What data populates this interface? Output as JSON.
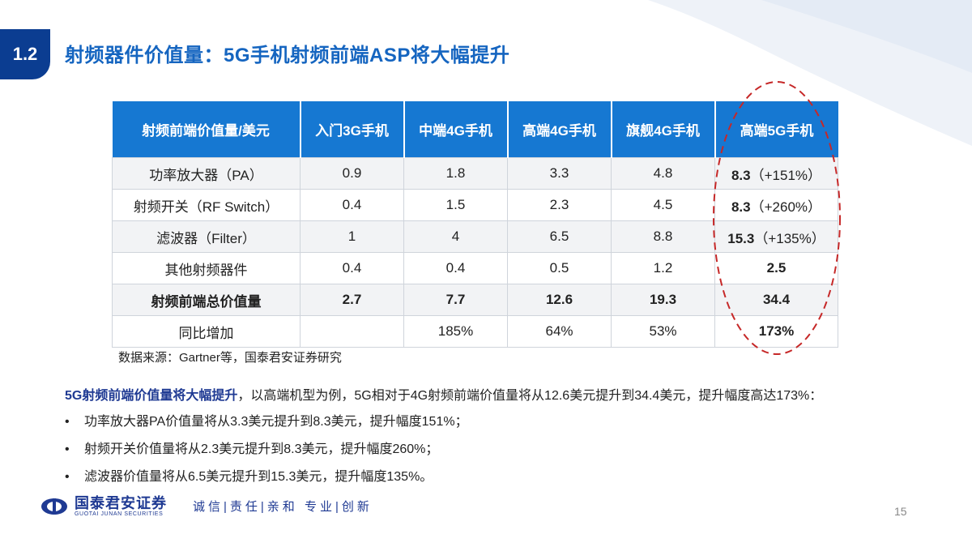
{
  "section": {
    "number": "1.2"
  },
  "title": "射频器件价值量：5G手机射频前端ASP将大幅提升",
  "table": {
    "headers": [
      "射频前端价值量/美元",
      "入门3G手机",
      "中端4G手机",
      "高端4G手机",
      "旗舰4G手机",
      "高端5G手机"
    ],
    "rows": [
      {
        "label": "功率放大器（PA）",
        "cells": [
          "0.9",
          "1.8",
          "3.3",
          "4.8"
        ],
        "last_value": "8.3",
        "last_note": "（+151%）"
      },
      {
        "label": "射频开关（RF Switch）",
        "cells": [
          "0.4",
          "1.5",
          "2.3",
          "4.5"
        ],
        "last_value": "8.3",
        "last_note": "（+260%）"
      },
      {
        "label": "滤波器（Filter）",
        "cells": [
          "1",
          "4",
          "6.5",
          "8.8"
        ],
        "last_value": "15.3",
        "last_note": "（+135%）"
      },
      {
        "label": "其他射频器件",
        "cells": [
          "0.4",
          "0.4",
          "0.5",
          "1.2"
        ],
        "last_value": "2.5",
        "last_note": ""
      },
      {
        "label": "射频前端总价值量",
        "cells": [
          "2.7",
          "7.7",
          "12.6",
          "19.3"
        ],
        "last_value": "34.4",
        "last_note": ""
      },
      {
        "label": "同比增加",
        "cells": [
          "",
          "185%",
          "64%",
          "53%"
        ],
        "last_value": "173%",
        "last_note": ""
      }
    ]
  },
  "source": "数据来源：Gartner等，国泰君安证券研究",
  "summary": {
    "lead": "5G射频前端价值量将大幅提升",
    "rest": "，以高端机型为例，5G相对于4G射频前端价值量将从12.6美元提升到34.4美元，提升幅度高达173%："
  },
  "bullets": [
    "功率放大器PA价值量将从3.3美元提升到8.3美元，提升幅度151%；",
    "射频开关价值量将从2.3美元提升到8.3美元，提升幅度260%；",
    "滤波器价值量将从6.5美元提升到15.3美元，提升幅度135%。"
  ],
  "footer": {
    "logo_cn": "国泰君安证券",
    "logo_en": "GUOTAI JUNAN SECURITIES",
    "slogan": "诚信|责任|亲和 专业|创新",
    "page_number": "15"
  },
  "colors": {
    "header_blue": "#1678d2",
    "title_blue": "#1565c0",
    "badge_navy": "#0b3d91",
    "oval_red": "#c62828"
  }
}
